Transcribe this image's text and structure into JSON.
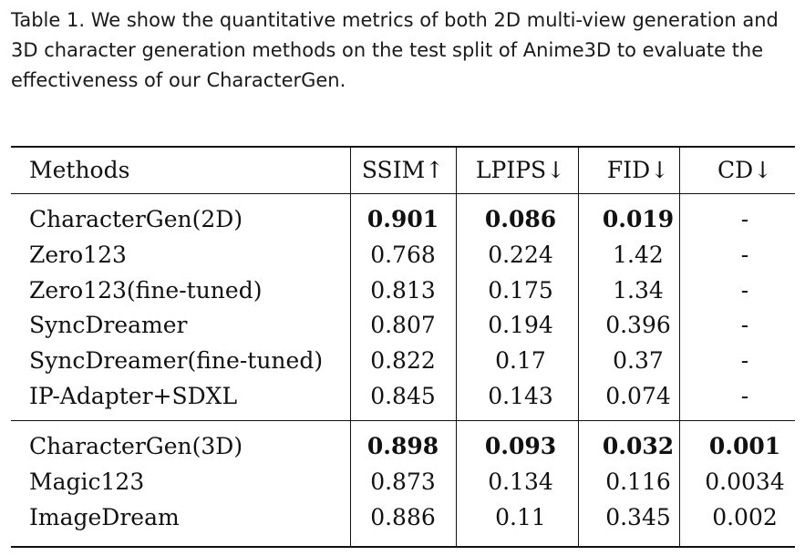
{
  "caption": "Table 1.  We show the quantitative metrics of both 2D multi-view generation and 3D character generation methods on the test split of Anime3D to evaluate the effectiveness of our CharacterGen.",
  "table": {
    "headers": [
      "Methods",
      "SSIM↑",
      "LPIPS↓",
      "FID↓",
      "CD↓"
    ],
    "group_2d": [
      {
        "method": "CharacterGen(2D)",
        "ssim": "0.901",
        "lpips": "0.086",
        "fid": "0.019",
        "cd": "-"
      },
      {
        "method": "Zero123",
        "ssim": "0.768",
        "lpips": "0.224",
        "fid": "1.42",
        "cd": "-"
      },
      {
        "method": "Zero123(fine-tuned)",
        "ssim": "0.813",
        "lpips": "0.175",
        "fid": "1.34",
        "cd": "-"
      },
      {
        "method": "SyncDreamer",
        "ssim": "0.807",
        "lpips": "0.194",
        "fid": "0.396",
        "cd": "-"
      },
      {
        "method": "SyncDreamer(fine-tuned)",
        "ssim": "0.822",
        "lpips": "0.17",
        "fid": "0.37",
        "cd": "-"
      },
      {
        "method": "IP-Adapter+SDXL",
        "ssim": "0.845",
        "lpips": "0.143",
        "fid": "0.074",
        "cd": "-"
      }
    ],
    "group_3d": [
      {
        "method": "CharacterGen(3D)",
        "ssim": "0.898",
        "lpips": "0.093",
        "fid": "0.032",
        "cd": "0.001"
      },
      {
        "method": "Magic123",
        "ssim": "0.873",
        "lpips": "0.134",
        "fid": "0.116",
        "cd": "0.0034"
      },
      {
        "method": "ImageDream",
        "ssim": "0.886",
        "lpips": "0.11",
        "fid": "0.345",
        "cd": "0.002"
      }
    ]
  }
}
